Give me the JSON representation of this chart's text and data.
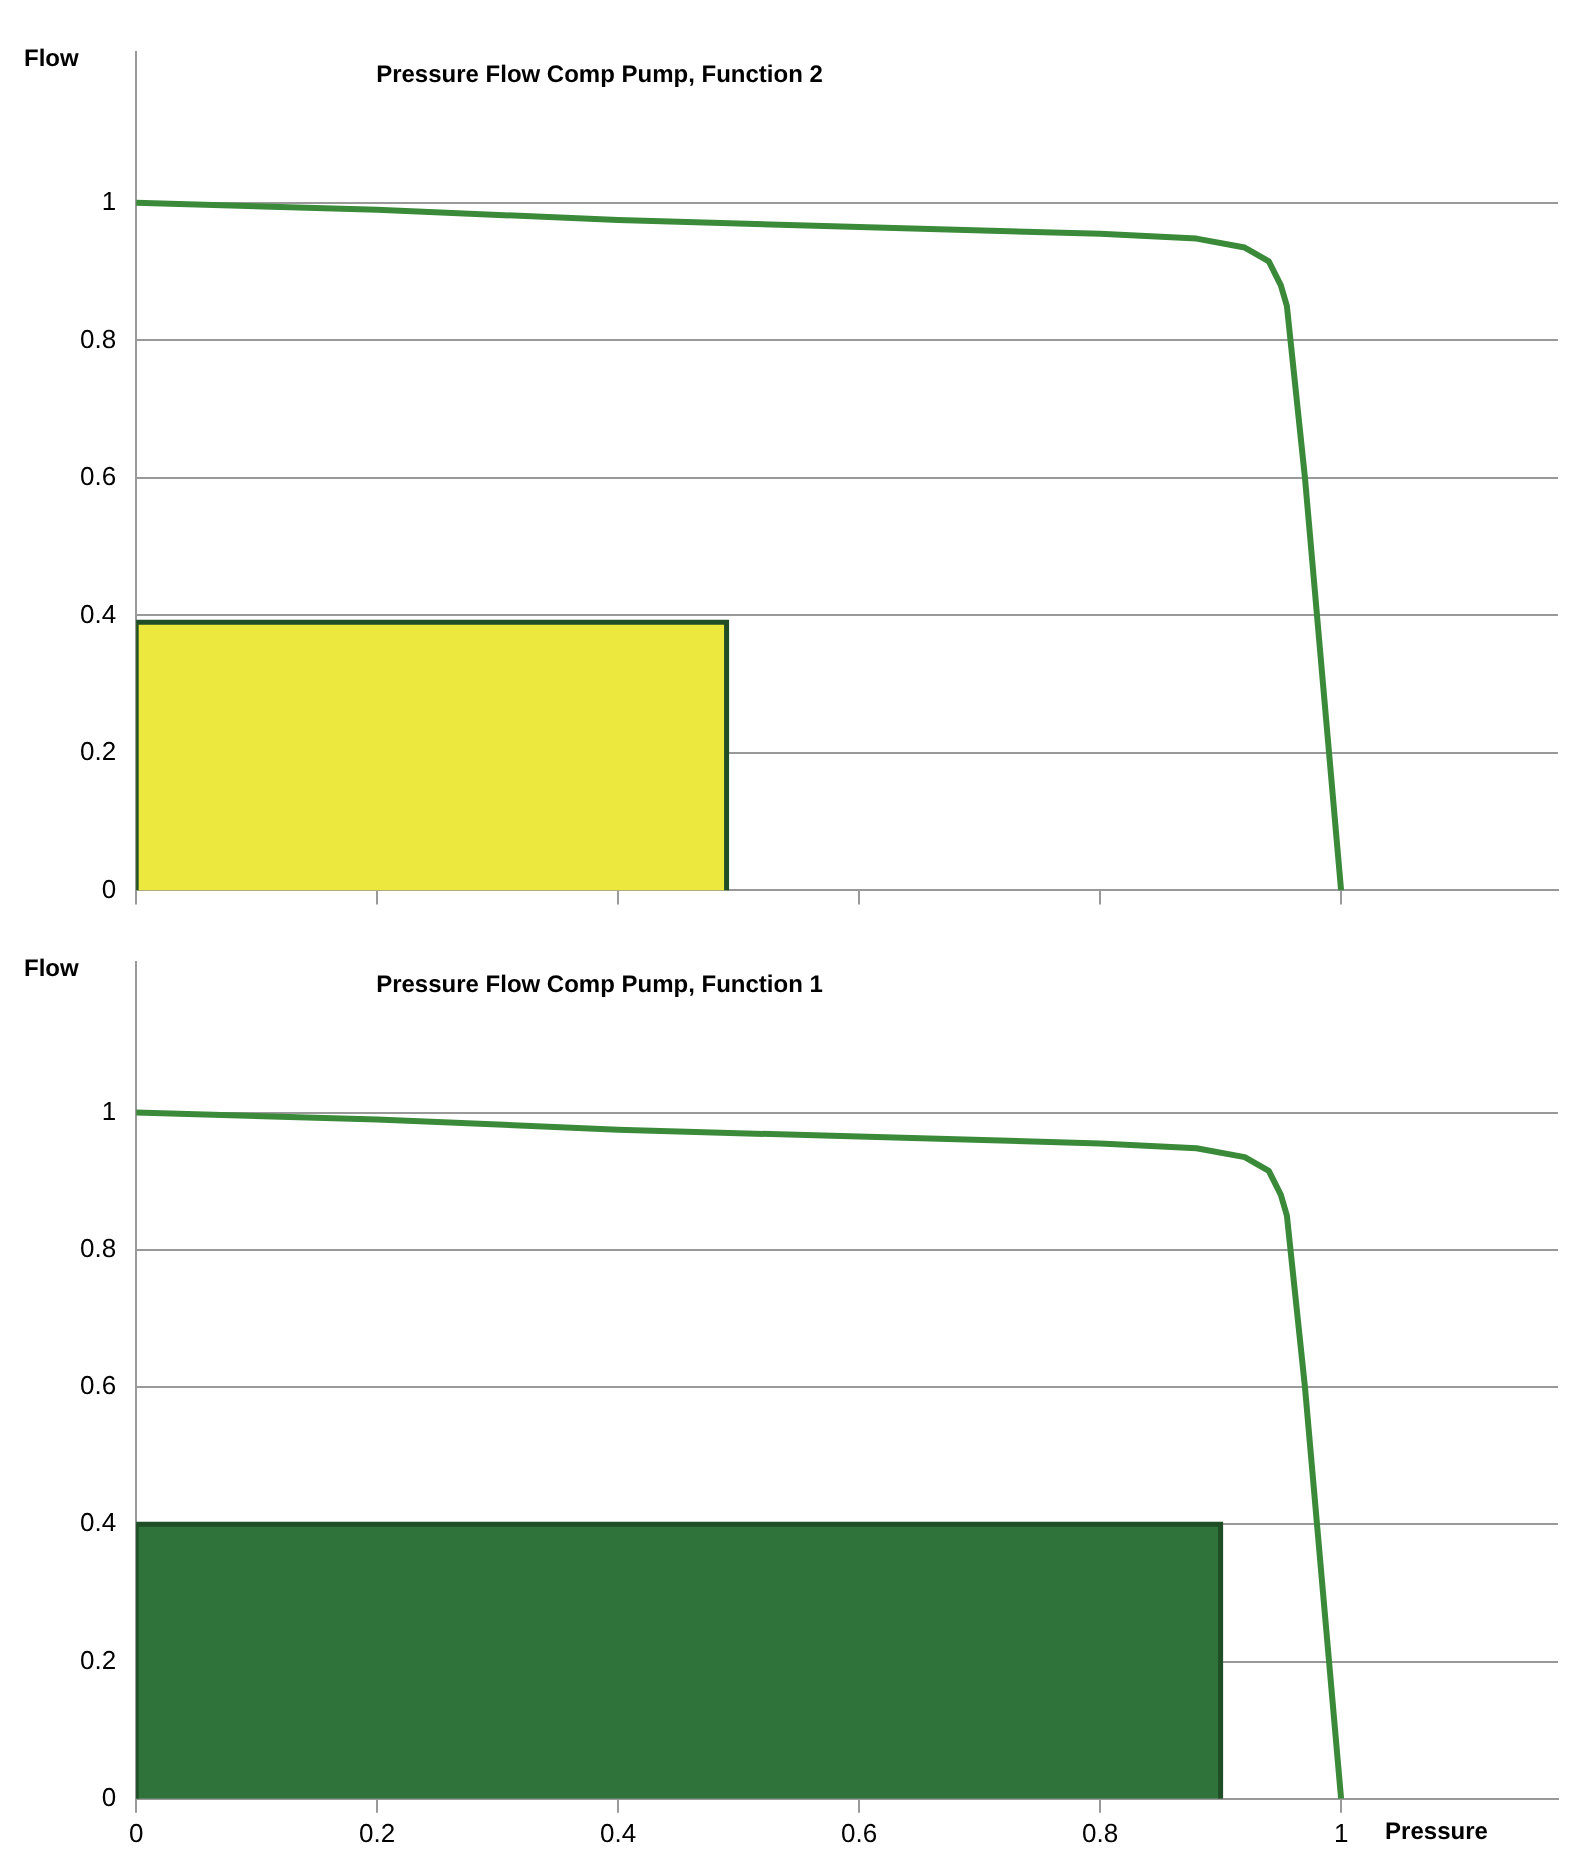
{
  "chart_data": [
    {
      "type": "line",
      "title": "Pressure Flow Comp Pump, Function 2",
      "ylabel": "Flow",
      "xlim": [
        0,
        1.18
      ],
      "xticks": [
        {
          "value": 0,
          "label": null
        },
        {
          "value": 0.2,
          "label": null
        },
        {
          "value": 0.4,
          "label": null
        },
        {
          "value": 0.6,
          "label": null
        },
        {
          "value": 0.8,
          "label": null
        },
        {
          "value": 1,
          "label": null
        }
      ],
      "ylim": [
        0,
        1.22
      ],
      "yticks": [
        0,
        0.2,
        0.4,
        0.6,
        0.8,
        1
      ],
      "grid": "y",
      "legend": false,
      "marker": "none",
      "tick_labels": "y",
      "series": [
        {
          "type": "area",
          "color": "#ece83e",
          "x": [
            0,
            0,
            0.49,
            0.49
          ],
          "values": [
            0,
            0.39,
            0.39,
            0
          ]
        },
        {
          "type": "line",
          "color": "#3a8a3a",
          "x": [
            0,
            0.2,
            0.4,
            0.6,
            0.8,
            0.88,
            0.92,
            0.94,
            0.95,
            0.955,
            0.97,
            0.985,
            1
          ],
          "values": [
            1,
            0.99,
            0.975,
            0.965,
            0.955,
            0.948,
            0.935,
            0.915,
            0.88,
            0.85,
            0.6,
            0.3,
            0
          ]
        }
      ]
    },
    {
      "type": "line",
      "title": "Pressure Flow Comp Pump, Function 1",
      "ylabel": "Flow",
      "xlabel": "Pressure",
      "xlim": [
        0,
        1.18
      ],
      "xticks": [
        0,
        0.2,
        0.4,
        0.6,
        0.8,
        1
      ],
      "ylim": [
        0,
        1.22
      ],
      "yticks": [
        0,
        0.2,
        0.4,
        0.6,
        0.8,
        1
      ],
      "grid": "y",
      "legend": false,
      "marker": "none",
      "series": [
        {
          "type": "area",
          "color": "#2f733a",
          "x": [
            0,
            0,
            0.9,
            0.9
          ],
          "values": [
            0,
            0.4,
            0.4,
            0
          ]
        },
        {
          "type": "line",
          "color": "#3a8a3a",
          "x": [
            0,
            0.2,
            0.4,
            0.6,
            0.8,
            0.88,
            0.92,
            0.94,
            0.95,
            0.955,
            0.97,
            0.985,
            1
          ],
          "values": [
            1,
            0.99,
            0.975,
            0.965,
            0.955,
            0.948,
            0.935,
            0.915,
            0.88,
            0.85,
            0.6,
            0.3,
            0
          ]
        }
      ]
    }
  ]
}
